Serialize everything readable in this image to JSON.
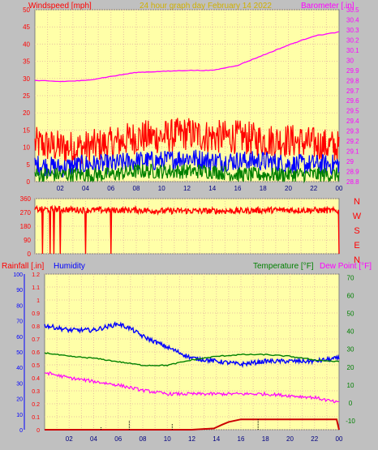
{
  "header": {
    "left_label": "Windspeed [mph]",
    "center_label": "24 hour graph day   February 14 2022",
    "right_label": "Barometer [.in]"
  },
  "colors": {
    "plot_bg": "#ffffa8",
    "grid": "#e8c0a0",
    "gust": "#ff0000",
    "avg_wind": "#0000ff",
    "low_wind": "#008000",
    "barometer": "#ff00ff",
    "temperature": "#008000",
    "humidity": "#0000ff",
    "dewpoint": "#ff00ff",
    "rain": "#cc0000"
  },
  "time_ticks": [
    "02",
    "04",
    "06",
    "08",
    "10",
    "12",
    "14",
    "16",
    "18",
    "20",
    "22",
    "00"
  ],
  "chart_data": [
    {
      "type": "line",
      "title": "24 hour graph day   February 14 2022",
      "ylabel_left": "Windspeed [mph]",
      "ylabel_right": "Barometer [.in]",
      "y_left_ticks": [
        "50",
        "45",
        "40",
        "35",
        "30",
        "25",
        "20",
        "15",
        "10",
        "5",
        "0"
      ],
      "y_right_ticks": [
        "30.5",
        "30.4",
        "30.3",
        "30.2",
        "30.1",
        "30",
        "29.9",
        "29.8",
        "29.7",
        "29.6",
        "29.5",
        "29.4",
        "29.3",
        "29.2",
        "29.1",
        "29",
        "28.9",
        "28.8"
      ],
      "ylim_left": [
        0,
        50
      ],
      "ylim_right": [
        28.8,
        30.5
      ],
      "x_hours": [
        0,
        24
      ],
      "series": [
        {
          "name": "Barometer",
          "axis": "right",
          "x": [
            0,
            2,
            4,
            6,
            8,
            10,
            12,
            14,
            16,
            18,
            20,
            22,
            24
          ],
          "values": [
            29.8,
            29.79,
            29.8,
            29.84,
            29.88,
            29.89,
            29.9,
            29.9,
            29.95,
            30.05,
            30.15,
            30.24,
            30.28
          ]
        },
        {
          "name": "Gust",
          "axis": "left",
          "x": [
            0,
            2,
            4,
            6,
            8,
            10,
            12,
            14,
            16,
            18,
            20,
            22,
            24
          ],
          "values": [
            11,
            10,
            10,
            11,
            13,
            13,
            14,
            13,
            13,
            12,
            12,
            11,
            10
          ]
        },
        {
          "name": "Average",
          "axis": "left",
          "x": [
            0,
            2,
            4,
            6,
            8,
            10,
            12,
            14,
            16,
            18,
            20,
            22,
            24
          ],
          "values": [
            5,
            4,
            5,
            5,
            6,
            6,
            7,
            6,
            6,
            6,
            5,
            5,
            5
          ]
        },
        {
          "name": "Low",
          "axis": "left",
          "x": [
            0,
            2,
            4,
            6,
            8,
            10,
            12,
            14,
            16,
            18,
            20,
            22,
            24
          ],
          "values": [
            2,
            2,
            2,
            2,
            3,
            3,
            3,
            3,
            2,
            2,
            2,
            2,
            2
          ]
        }
      ]
    },
    {
      "type": "line",
      "ylabel_right": "",
      "y_left_ticks": [
        "360",
        "270",
        "180",
        "90",
        "0"
      ],
      "y_right_labels": [
        "N",
        "W",
        "S",
        "E",
        "N"
      ],
      "ylim": [
        0,
        360
      ],
      "series": [
        {
          "name": "Wind direction",
          "x": [
            0,
            2,
            4,
            6,
            8,
            10,
            12,
            14,
            16,
            18,
            20,
            22,
            24
          ],
          "values": [
            290,
            290,
            285,
            285,
            285,
            280,
            280,
            280,
            280,
            285,
            285,
            285,
            280
          ]
        }
      ]
    },
    {
      "type": "line",
      "ylabel_left_1": "Rainfall [.in]",
      "ylabel_left_2": "Humidity",
      "ylabel_right_1": "Temperature [°F]",
      "ylabel_right_2": "Dew Point [°F]",
      "y_rain_ticks": [
        "1.2",
        "1.1",
        "1",
        "0.9",
        "0.8",
        "0.7",
        "0.6",
        "0.5",
        "0.4",
        "0.3",
        "0.2",
        "0.1",
        "0"
      ],
      "y_hum_ticks": [
        "100",
        "90",
        "80",
        "70",
        "60",
        "50",
        "40",
        "30",
        "20",
        "10",
        "0"
      ],
      "y_temp_ticks": [
        "70",
        "60",
        "50",
        "40",
        "30",
        "20",
        "10",
        "0",
        "-10"
      ],
      "ylim_rain": [
        0,
        1.2
      ],
      "ylim_hum": [
        0,
        100
      ],
      "ylim_temp": [
        -15,
        72
      ],
      "series": [
        {
          "name": "Humidity",
          "axis": "humidity",
          "x": [
            0,
            2,
            4,
            6,
            7,
            8,
            10,
            12,
            14,
            16,
            18,
            20,
            22,
            24
          ],
          "values": [
            67,
            64,
            64,
            68,
            65,
            60,
            53,
            46,
            44,
            42,
            44,
            44,
            44,
            46
          ]
        },
        {
          "name": "Temperature",
          "axis": "temp",
          "x": [
            0,
            2,
            4,
            6,
            8,
            10,
            12,
            14,
            16,
            18,
            20,
            22,
            24
          ],
          "values": [
            28,
            26,
            25,
            23,
            21,
            21,
            24,
            26,
            27,
            27,
            26,
            24,
            23
          ]
        },
        {
          "name": "Dew Point",
          "axis": "temp",
          "x": [
            0,
            2,
            4,
            6,
            8,
            10,
            12,
            14,
            16,
            18,
            20,
            22,
            24
          ],
          "values": [
            17,
            14,
            12,
            10,
            7,
            5,
            5,
            5,
            5,
            5,
            4,
            3,
            0
          ]
        },
        {
          "name": "Rainfall",
          "axis": "rain",
          "x": [
            0,
            12,
            13.8,
            14.5,
            15,
            16,
            18,
            20,
            22,
            23.8,
            24
          ],
          "values": [
            0,
            0,
            0.01,
            0.04,
            0.06,
            0.08,
            0.08,
            0.08,
            0.08,
            0.08,
            0
          ]
        }
      ]
    }
  ],
  "lower_labels": {
    "rain": "Rainfall [.in]",
    "humidity": "Humidity",
    "temperature": "Temperature [°F]",
    "dewpoint": "Dew Point [°F]"
  },
  "direction_labels": [
    "N",
    "W",
    "S",
    "E",
    "N"
  ]
}
